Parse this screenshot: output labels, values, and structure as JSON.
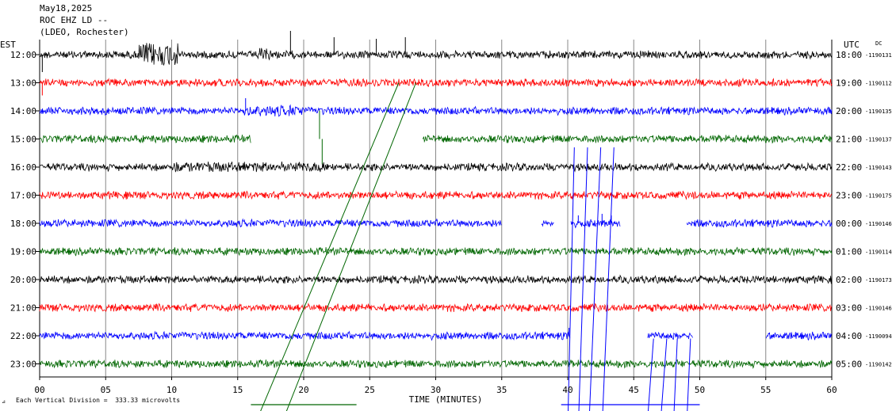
{
  "header": {
    "date": "May18,2025",
    "station": "ROC EHZ LD --",
    "network": "(LDEO, Rochester)"
  },
  "chart_data": {
    "type": "line",
    "title": "",
    "left_axis_label": "EST",
    "right_axis_label": "UTC",
    "dc_label": "DC",
    "xlabel": "TIME (MINUTES)",
    "xlim": [
      0,
      60
    ],
    "x_ticks": [
      "00",
      "05",
      "10",
      "15",
      "20",
      "25",
      "30",
      "35",
      "40",
      "45",
      "50",
      "55",
      "60"
    ],
    "footer_note": "Each Vertical Division =  333.33 microvolts",
    "grid": true,
    "trace_colors": [
      "#000000",
      "#ff0000",
      "#0000ff",
      "#006600"
    ],
    "rows": [
      {
        "est": "12:00",
        "utc": "18:00",
        "dc": "-1190131",
        "color": "#000000",
        "gaps": [],
        "bursts": [
          [
            7.5,
            10.5,
            3.5
          ],
          [
            16.5,
            17.5,
            1.8
          ]
        ],
        "spikes": [
          [
            19,
            -30
          ],
          [
            22.3,
            -22
          ],
          [
            25.5,
            -20
          ],
          [
            27.7,
            -22
          ],
          [
            0.2,
            22
          ]
        ]
      },
      {
        "est": "13:00",
        "utc": "19:00",
        "dc": "-1190112",
        "color": "#ff0000",
        "gaps": [],
        "bursts": [],
        "spikes": [
          [
            0.2,
            16
          ]
        ]
      },
      {
        "est": "14:00",
        "utc": "20:00",
        "dc": "-1190135",
        "color": "#0000ff",
        "gaps": [],
        "bursts": [
          [
            15.5,
            20,
            1.6
          ]
        ],
        "spikes": [
          [
            15.6,
            -16
          ]
        ]
      },
      {
        "est": "15:00",
        "utc": "21:00",
        "dc": "-1190137",
        "color": "#006600",
        "gaps": [
          [
            16,
            29
          ]
        ],
        "bursts": [],
        "spikes": [
          [
            21.4,
            32
          ],
          [
            21.2,
            -36
          ]
        ]
      },
      {
        "est": "16:00",
        "utc": "22:00",
        "dc": "-1190143",
        "color": "#000000",
        "gaps": [],
        "bursts": [
          [
            10,
            22,
            1.4
          ]
        ],
        "spikes": []
      },
      {
        "est": "17:00",
        "utc": "23:00",
        "dc": "-1190175",
        "color": "#ff0000",
        "gaps": [],
        "bursts": [],
        "spikes": []
      },
      {
        "est": "18:00",
        "utc": "00:00",
        "dc": "-1190146",
        "color": "#0000ff",
        "gaps": [
          [
            35,
            38
          ],
          [
            39,
            40.2
          ],
          [
            44,
            49
          ]
        ],
        "bursts": [],
        "spikes": [
          [
            40.8,
            -10
          ],
          [
            42.6,
            -12
          ],
          [
            43.3,
            -10
          ]
        ]
      },
      {
        "est": "19:00",
        "utc": "01:00",
        "dc": "-1190114",
        "color": "#006600",
        "gaps": [],
        "bursts": [],
        "spikes": []
      },
      {
        "est": "20:00",
        "utc": "02:00",
        "dc": "-1190173",
        "color": "#000000",
        "gaps": [],
        "bursts": [],
        "spikes": []
      },
      {
        "est": "21:00",
        "utc": "03:00",
        "dc": "-1190146",
        "color": "#ff0000",
        "gaps": [],
        "bursts": [],
        "spikes": []
      },
      {
        "est": "22:00",
        "utc": "04:00",
        "dc": "-1190094",
        "color": "#0000ff",
        "gaps": [
          [
            40.2,
            46
          ],
          [
            49.5,
            55
          ]
        ],
        "bursts": [],
        "spikes": [
          [
            40.1,
            -10
          ]
        ]
      },
      {
        "est": "23:00",
        "utc": "05:00",
        "dc": "-1190142",
        "color": "#006600",
        "gaps": [],
        "bursts": [],
        "spikes": []
      }
    ],
    "step_lines": [
      {
        "color": "#006600",
        "from": [
          1,
          27.2
        ],
        "to": [
          12.6,
          16.2
        ]
      },
      {
        "color": "#006600",
        "from": [
          1,
          28.5
        ],
        "to": [
          12.6,
          18.2
        ]
      },
      {
        "color": "#0000ff",
        "from": [
          3.3,
          40.5
        ],
        "to": [
          12.6,
          40.0
        ]
      },
      {
        "color": "#0000ff",
        "from": [
          3.3,
          41.5
        ],
        "to": [
          12.6,
          40.8
        ]
      },
      {
        "color": "#0000ff",
        "from": [
          3.3,
          42.5
        ],
        "to": [
          12.6,
          41.6
        ]
      },
      {
        "color": "#0000ff",
        "from": [
          3.3,
          43.5
        ],
        "to": [
          12.6,
          42.6
        ]
      },
      {
        "color": "#0000ff",
        "from": [
          10.1,
          46.5
        ],
        "to": [
          12.6,
          46.0
        ]
      },
      {
        "color": "#0000ff",
        "from": [
          10.1,
          47.5
        ],
        "to": [
          12.6,
          47.0
        ]
      },
      {
        "color": "#0000ff",
        "from": [
          10.1,
          48.3
        ],
        "to": [
          12.6,
          48.0
        ]
      },
      {
        "color": "#0000ff",
        "from": [
          10.1,
          49.3
        ],
        "to": [
          12.6,
          49.0
        ]
      }
    ],
    "bottom_strips": [
      {
        "color": "#006600",
        "x": [
          16,
          24
        ]
      },
      {
        "color": "#0000ff",
        "x": [
          39.5,
          50
        ]
      }
    ]
  }
}
